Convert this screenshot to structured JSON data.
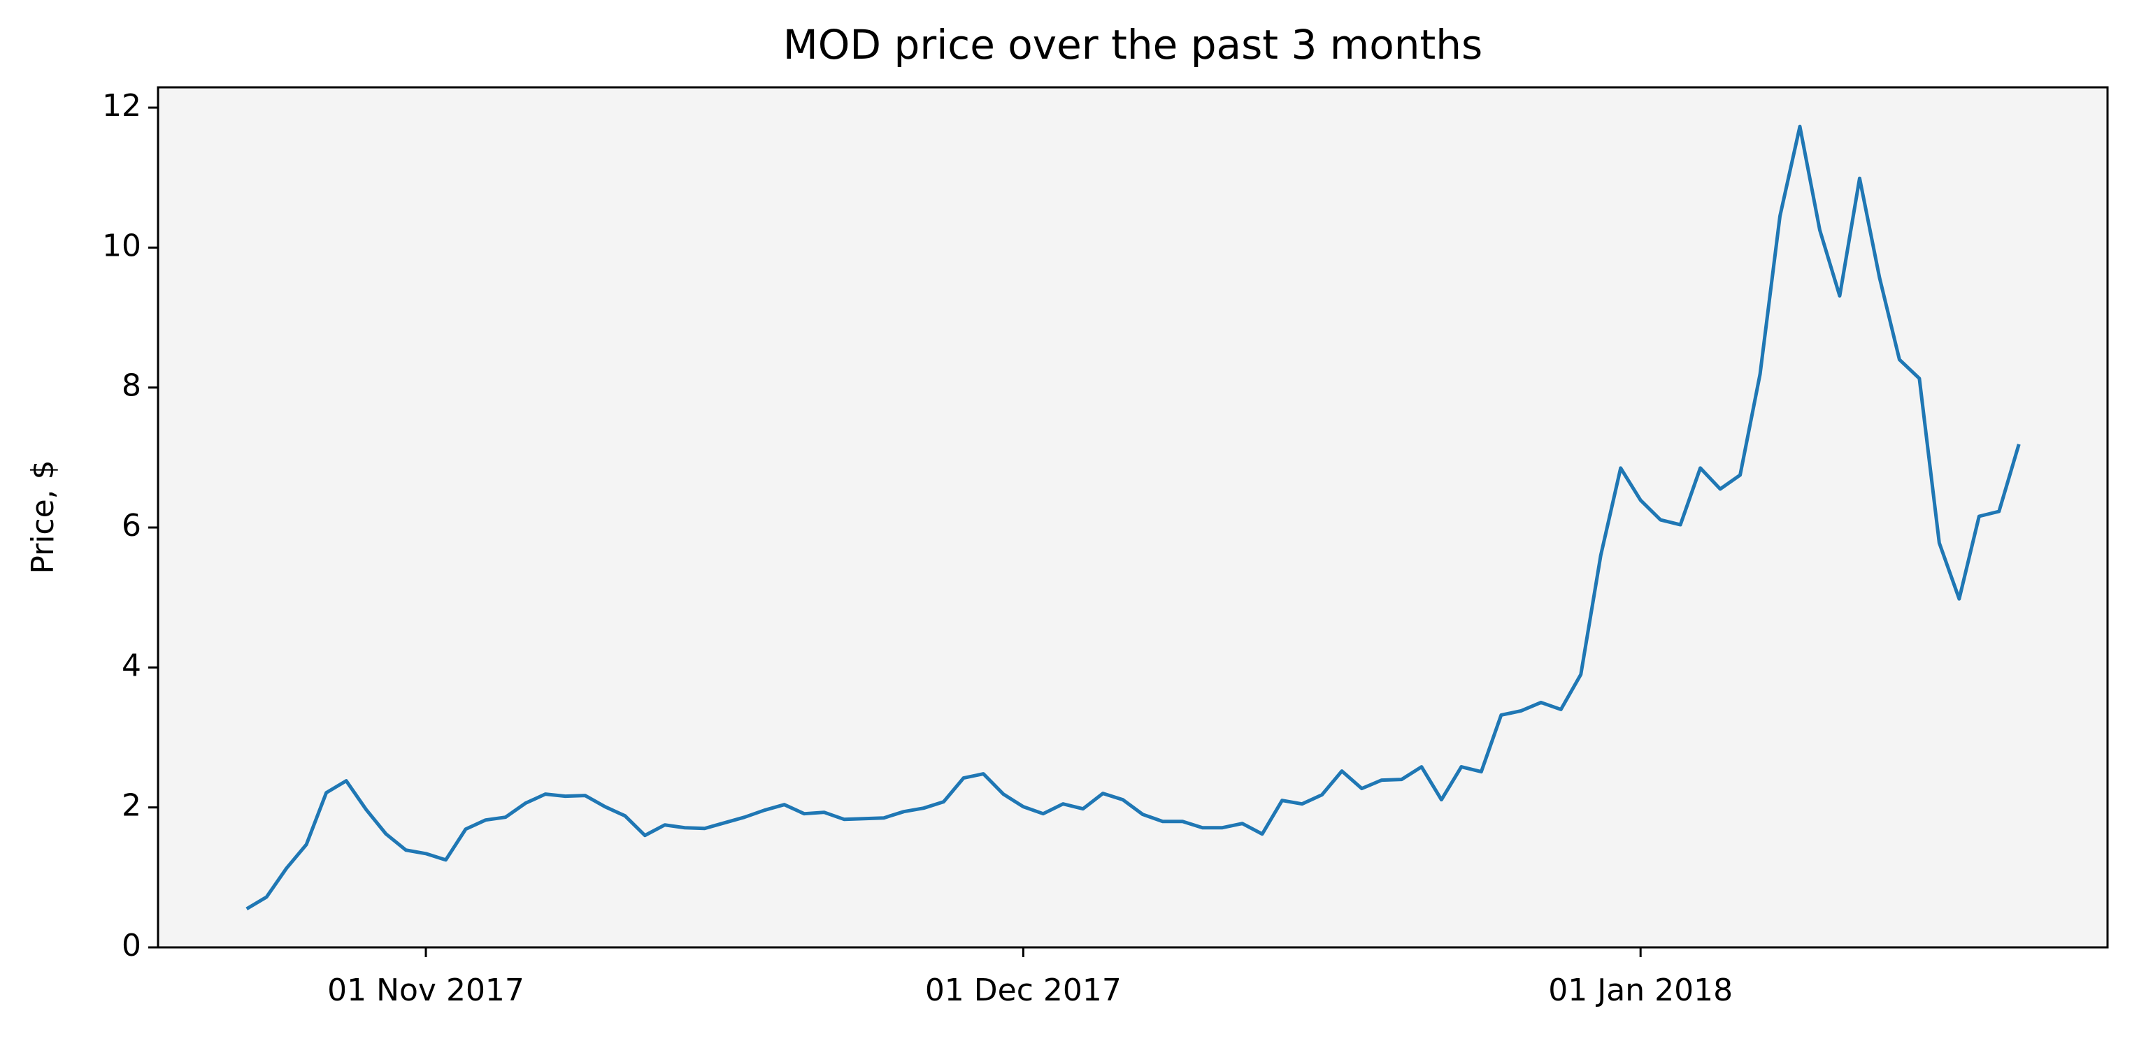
{
  "chart_data": {
    "type": "line",
    "title": "MOD price over the past 3 months",
    "y_label": "Price, $",
    "color": "#1f77b4",
    "x": [
      "2017-10-23",
      "2017-10-24",
      "2017-10-25",
      "2017-10-26",
      "2017-10-27",
      "2017-10-28",
      "2017-10-29",
      "2017-10-30",
      "2017-10-31",
      "2017-11-01",
      "2017-11-02",
      "2017-11-03",
      "2017-11-04",
      "2017-11-05",
      "2017-11-06",
      "2017-11-07",
      "2017-11-08",
      "2017-11-09",
      "2017-11-10",
      "2017-11-11",
      "2017-11-12",
      "2017-11-13",
      "2017-11-14",
      "2017-11-15",
      "2017-11-16",
      "2017-11-17",
      "2017-11-18",
      "2017-11-19",
      "2017-11-20",
      "2017-11-21",
      "2017-11-22",
      "2017-11-23",
      "2017-11-24",
      "2017-11-25",
      "2017-11-26",
      "2017-11-27",
      "2017-11-28",
      "2017-11-29",
      "2017-11-30",
      "2017-12-01",
      "2017-12-02",
      "2017-12-03",
      "2017-12-04",
      "2017-12-05",
      "2017-12-06",
      "2017-12-07",
      "2017-12-08",
      "2017-12-09",
      "2017-12-10",
      "2017-12-11",
      "2017-12-12",
      "2017-12-13",
      "2017-12-14",
      "2017-12-15",
      "2017-12-16",
      "2017-12-17",
      "2017-12-18",
      "2017-12-19",
      "2017-12-20",
      "2017-12-21",
      "2017-12-22",
      "2017-12-23",
      "2017-12-24",
      "2017-12-25",
      "2017-12-26",
      "2017-12-27",
      "2017-12-28",
      "2017-12-29",
      "2017-12-30",
      "2017-12-31",
      "2018-01-01",
      "2018-01-02",
      "2018-01-03",
      "2018-01-04",
      "2018-01-05",
      "2018-01-06",
      "2018-01-07",
      "2018-01-08",
      "2018-01-09",
      "2018-01-10",
      "2018-01-11",
      "2018-01-12",
      "2018-01-13",
      "2018-01-14",
      "2018-01-15",
      "2018-01-16",
      "2018-01-17",
      "2018-01-18",
      "2018-01-19",
      "2018-01-20"
    ],
    "values": [
      0.55,
      0.72,
      1.13,
      1.47,
      2.21,
      2.38,
      1.97,
      1.62,
      1.39,
      1.34,
      1.25,
      1.69,
      1.82,
      1.86,
      2.06,
      2.19,
      2.16,
      2.17,
      2.01,
      1.88,
      1.6,
      1.75,
      1.71,
      1.7,
      1.78,
      1.86,
      1.96,
      2.04,
      1.91,
      1.93,
      1.83,
      1.84,
      1.85,
      1.94,
      1.99,
      2.08,
      2.42,
      2.48,
      2.19,
      2.01,
      1.91,
      2.05,
      1.98,
      2.2,
      2.11,
      1.9,
      1.8,
      1.8,
      1.71,
      1.71,
      1.77,
      1.62,
      2.1,
      2.05,
      2.18,
      2.52,
      2.27,
      2.39,
      2.4,
      2.58,
      2.11,
      2.58,
      2.51,
      3.32,
      3.38,
      3.5,
      3.4,
      3.9,
      5.6,
      6.85,
      6.39,
      6.11,
      6.04,
      6.85,
      6.55,
      6.75,
      8.19,
      10.45,
      11.73,
      10.25,
      9.31,
      10.99,
      9.57,
      8.4,
      8.13,
      5.78,
      4.98,
      6.16,
      6.23,
      7.19
    ],
    "xlim": [
      "2017-10-18T13:12",
      "2018-01-24T10:48"
    ],
    "xticks": [
      {
        "value": "2017-11-01",
        "label": "01 Nov 2017"
      },
      {
        "value": "2017-12-01",
        "label": "01 Dec 2017"
      },
      {
        "value": "2018-01-01",
        "label": "01 Jan 2018"
      }
    ],
    "ylim": [
      0,
      12.29
    ],
    "yticks": [
      0,
      2,
      4,
      6,
      8,
      10,
      12
    ],
    "grid": false
  }
}
